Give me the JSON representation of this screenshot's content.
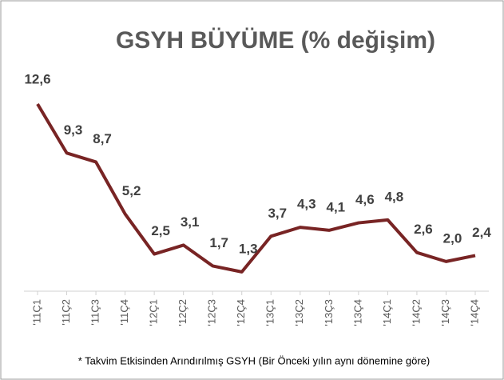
{
  "chart_data": {
    "type": "line",
    "title": "GSYH BÜYÜME (% değişim)",
    "footnote": "* Takvim Etkisinden Arındırılmış GSYH (Bir Önceki yılın aynı dönemine göre)",
    "categories": [
      "'11Ç1",
      "'11Ç2",
      "'11Ç3",
      "'11Ç4",
      "'12Ç1",
      "'12Ç2",
      "'12Ç3",
      "'12Ç4",
      "'13Ç1",
      "'13Ç2",
      "'13Ç3",
      "'13Ç4",
      "'14Ç1",
      "'14Ç2",
      "'14Ç3",
      "'14Ç4"
    ],
    "series": [
      {
        "name": "GSYH",
        "color": "#782424",
        "values": [
          12.6,
          9.3,
          8.7,
          5.2,
          2.5,
          3.1,
          1.7,
          1.3,
          3.7,
          4.3,
          4.1,
          4.6,
          4.8,
          2.6,
          2.0,
          2.4
        ],
        "value_labels": [
          "12,6",
          "9,3",
          "8,7",
          "5,2",
          "2,5",
          "3,1",
          "1,7",
          "1,3",
          "3,7",
          "4,3",
          "4,1",
          "4,6",
          "4,8",
          "2,6",
          "2,0",
          "2,4"
        ]
      }
    ],
    "ylim": [
      0,
      14
    ]
  }
}
